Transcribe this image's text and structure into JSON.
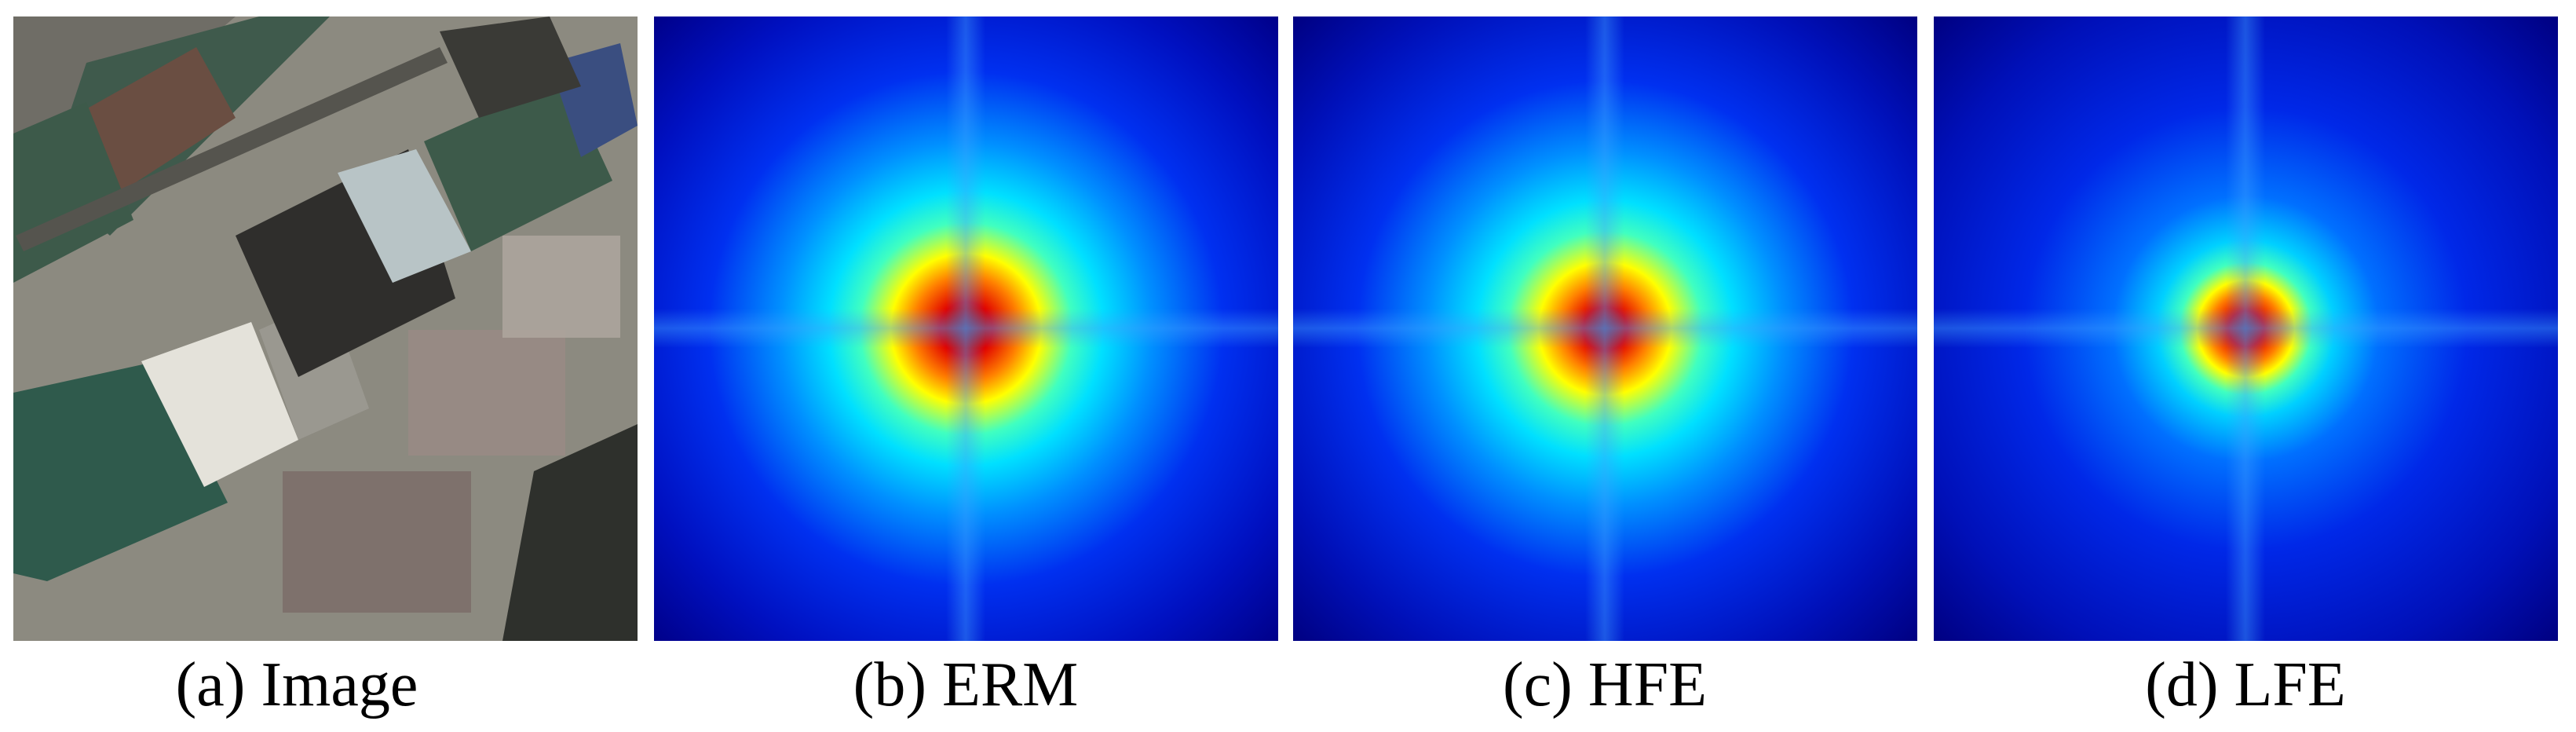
{
  "panels": [
    {
      "caption": "(a) Image"
    },
    {
      "caption": "(b) ERM"
    },
    {
      "caption": "(c) HFE"
    },
    {
      "caption": "(d) LFE"
    }
  ]
}
